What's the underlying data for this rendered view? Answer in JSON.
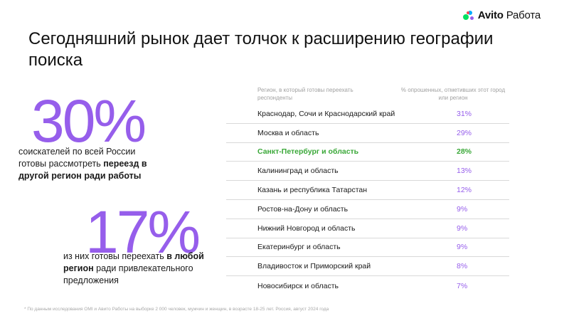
{
  "logo": {
    "brand": "Avito",
    "product": " Работа"
  },
  "title": "Сегодняшний рынок дает толчок к расширению географии поиска",
  "stat_1": {
    "value": "30%",
    "text_1": "соискателей по всей России готовы рассмотреть ",
    "text_bold": "переезд в другой регион ради работы"
  },
  "stat_2": {
    "value": "17%",
    "text_1": "из них готовы переехать ",
    "text_bold": "в любой регион",
    "text_2": " ради привлекательного предложения"
  },
  "table": {
    "col_region": "Регион, в который готовы переехать респонденты",
    "col_pct": "% опрошенных, отметивших этот город или регион",
    "rows": [
      {
        "region": "Краснодар, Сочи и Краснодарский край",
        "pct": "31%"
      },
      {
        "region": "Москва и область",
        "pct": "29%"
      },
      {
        "region": "Санкт-Петербург и область",
        "pct": "28%"
      },
      {
        "region": "Калининград и область",
        "pct": "13%"
      },
      {
        "region": "Казань и республика Татарстан",
        "pct": "12%"
      },
      {
        "region": "Ростов-на-Дону и область",
        "pct": "9%"
      },
      {
        "region": "Нижний Новгород и область",
        "pct": "9%"
      },
      {
        "region": "Екатеринбург и область",
        "pct": "9%"
      },
      {
        "region": "Владивосток и Приморский край",
        "pct": "8%"
      },
      {
        "region": "Новосибирск и область",
        "pct": "7%"
      }
    ],
    "highlight_index": 2
  },
  "footnote": "* По данным исследования OMI и Авито Работы на выборке 2 000 человек, мужчин и женщин, в возрасте 18-25 лет. Россия, август 2024 года",
  "colors": {
    "accent": "#965eeb",
    "highlight": "#3aa838"
  }
}
